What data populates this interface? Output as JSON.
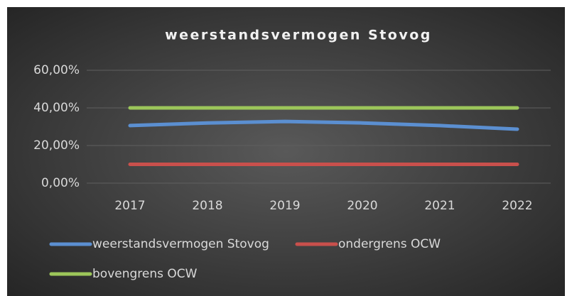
{
  "chart_data": {
    "type": "line",
    "title": "weerstandsvermogen Stovog",
    "categories": [
      "2017",
      "2018",
      "2019",
      "2020",
      "2021",
      "2022"
    ],
    "series": [
      {
        "name": "weerstandsvermogen Stovog",
        "color": "#5b8fd1",
        "values": [
          30.6,
          32,
          32.8,
          32,
          30.6,
          28.7
        ]
      },
      {
        "name": "ondergrens OCW",
        "color": "#c9504c",
        "values": [
          10,
          10,
          10,
          10,
          10,
          10
        ]
      },
      {
        "name": "bovengrens OCW",
        "color": "#9cc65a",
        "values": [
          40,
          40,
          40,
          40,
          40,
          40
        ]
      }
    ],
    "ylim": [
      0,
      60
    ],
    "yticks": [
      {
        "value": 0,
        "label": "0,00%"
      },
      {
        "value": 20,
        "label": "20,00%"
      },
      {
        "value": 40,
        "label": "40,00%"
      },
      {
        "value": 60,
        "label": "60,00%"
      }
    ],
    "grid": true,
    "legend": "bottom"
  }
}
